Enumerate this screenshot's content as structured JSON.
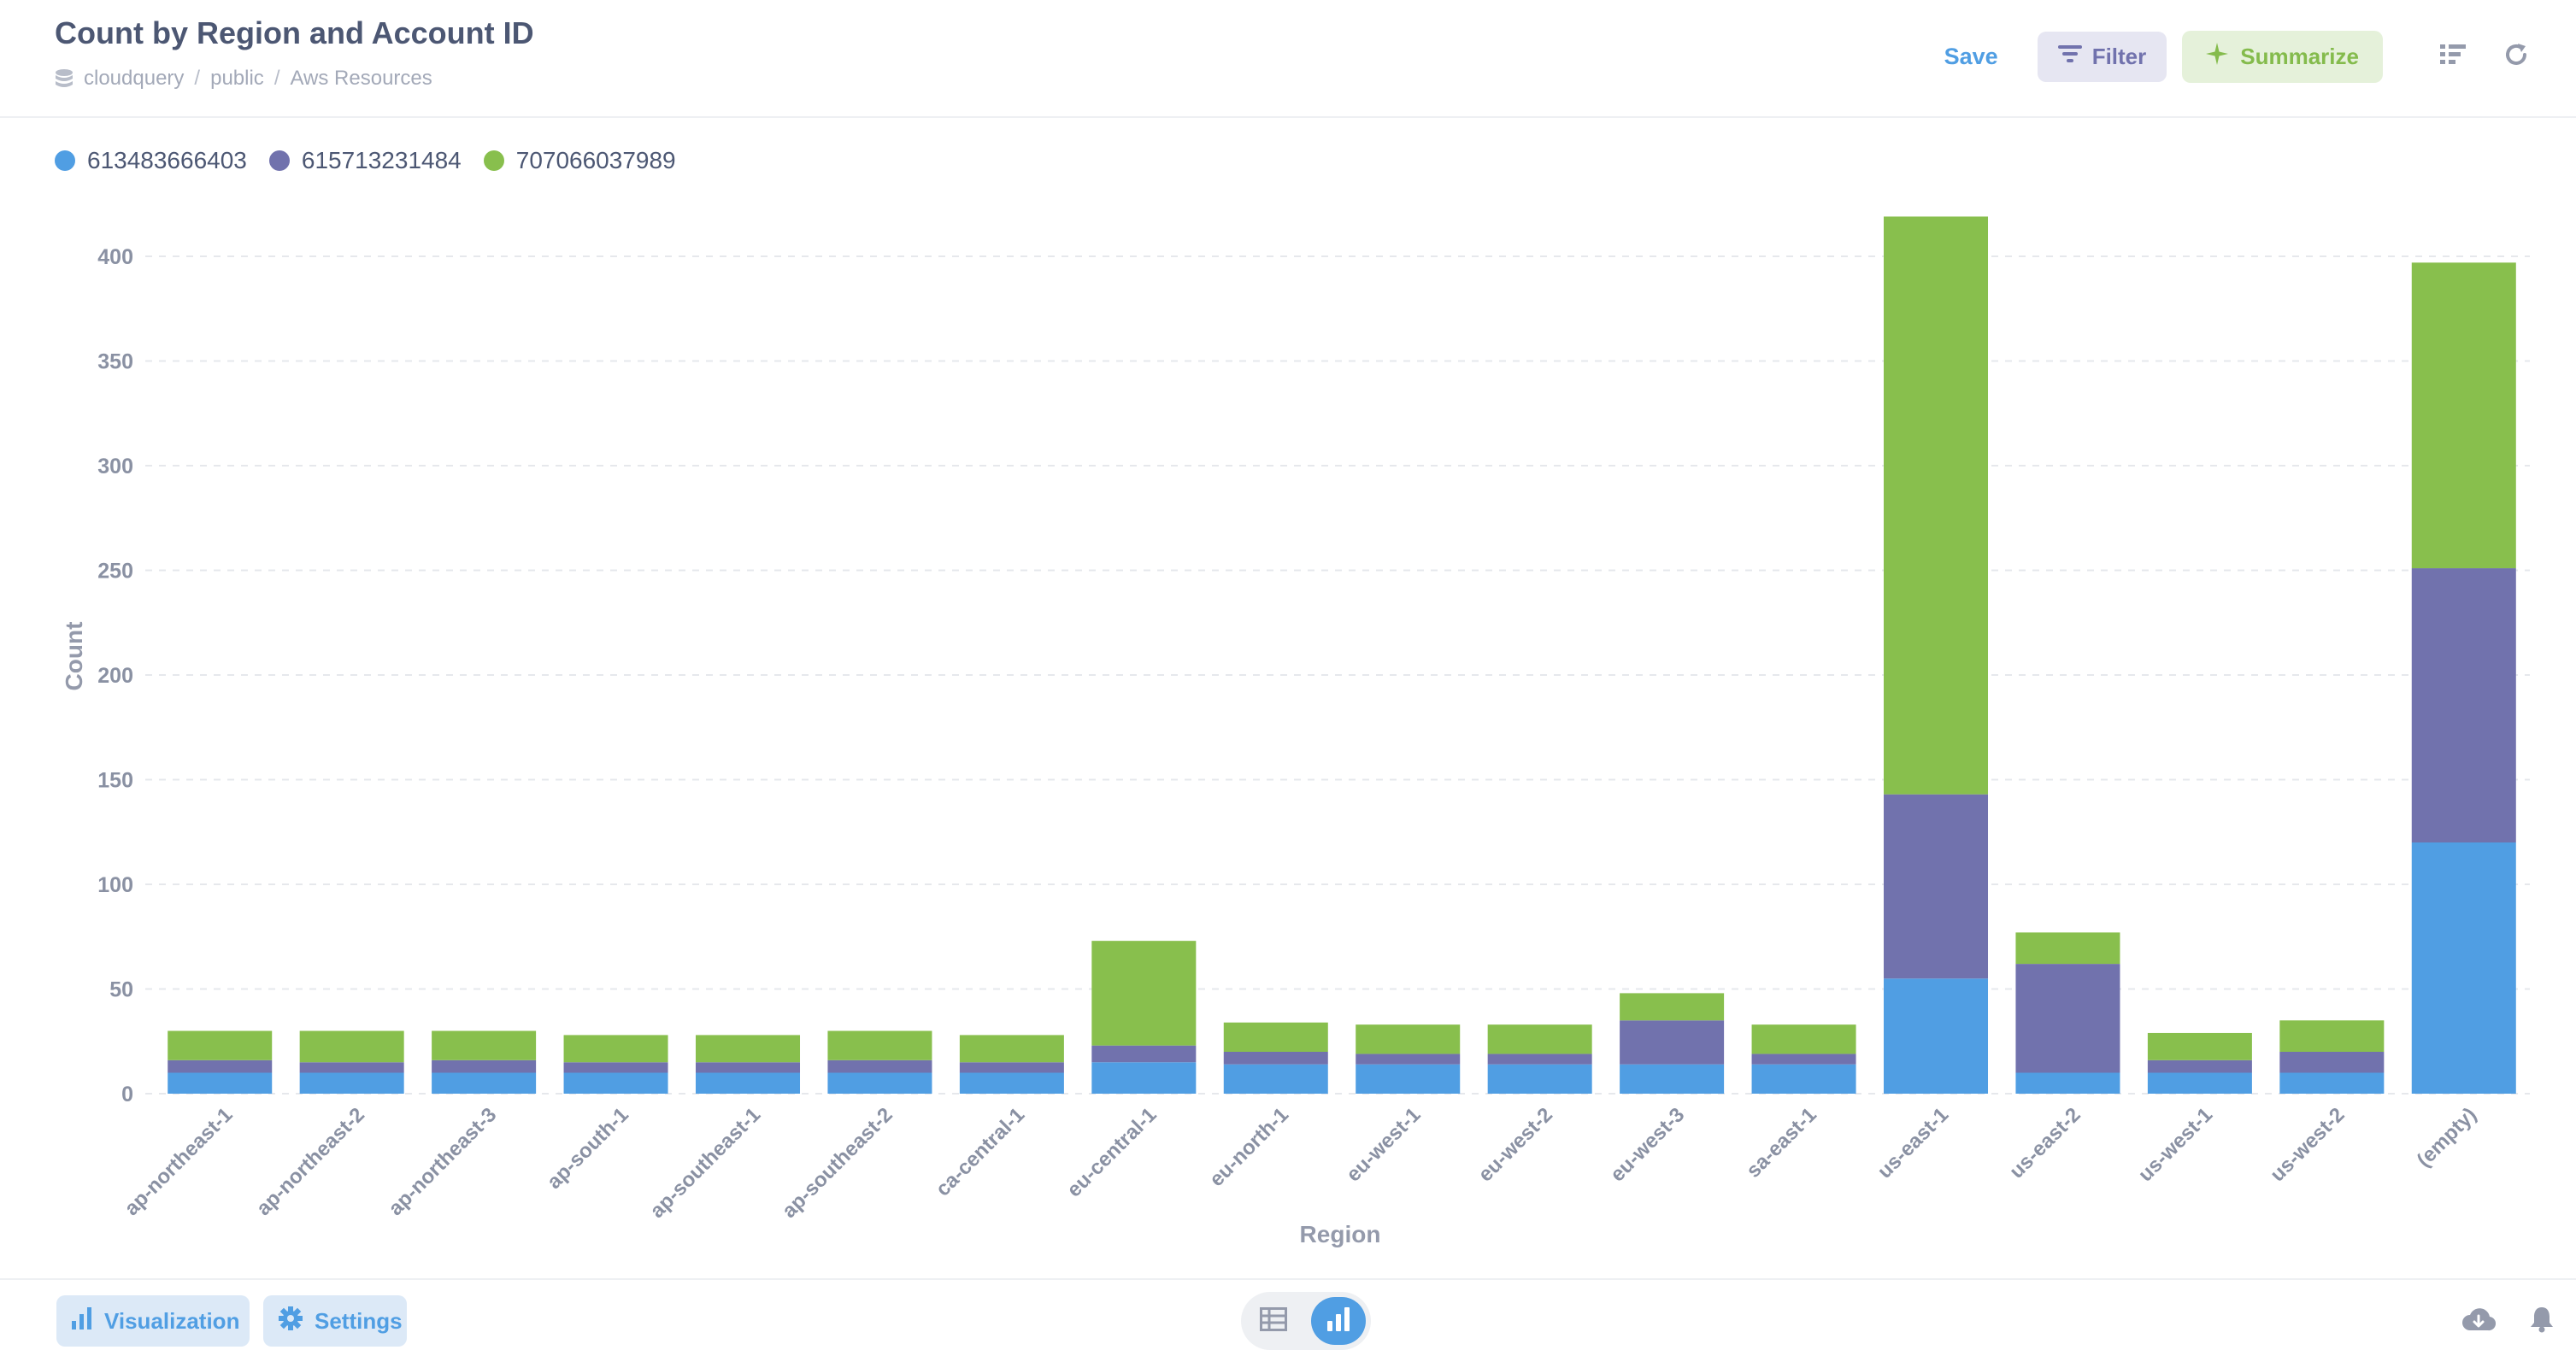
{
  "header": {
    "title": "Count by Region and Account ID",
    "breadcrumb": [
      "cloudquery",
      "public",
      "Aws Resources"
    ],
    "breadcrumb_sep": "/",
    "save_label": "Save",
    "filter_label": "Filter",
    "summarize_label": "Summarize"
  },
  "colors": {
    "series": [
      "#509ee3",
      "#7172ad",
      "#88bf4d"
    ],
    "accent": "#509ee3"
  },
  "chart_data": {
    "type": "bar",
    "stacked": true,
    "title": "Count by Region and Account ID",
    "xlabel": "Region",
    "ylabel": "Count",
    "ylim": [
      0,
      400
    ],
    "yticks": [
      0,
      50,
      100,
      150,
      200,
      250,
      300,
      350,
      400
    ],
    "grid": true,
    "legend_position": "top-left",
    "categories": [
      "ap-northeast-1",
      "ap-northeast-2",
      "ap-northeast-3",
      "ap-south-1",
      "ap-southeast-1",
      "ap-southeast-2",
      "ca-central-1",
      "eu-central-1",
      "eu-north-1",
      "eu-west-1",
      "eu-west-2",
      "eu-west-3",
      "sa-east-1",
      "us-east-1",
      "us-east-2",
      "us-west-1",
      "us-west-2",
      "(empty)"
    ],
    "series": [
      {
        "name": "613483666403",
        "values": [
          10,
          10,
          10,
          10,
          10,
          10,
          10,
          15,
          14,
          14,
          14,
          14,
          14,
          55,
          10,
          10,
          10,
          120
        ]
      },
      {
        "name": "615713231484",
        "values": [
          6,
          5,
          6,
          5,
          5,
          6,
          5,
          8,
          6,
          5,
          5,
          21,
          5,
          88,
          52,
          6,
          10,
          131
        ]
      },
      {
        "name": "707066037989",
        "values": [
          14,
          15,
          14,
          13,
          13,
          14,
          13,
          50,
          14,
          14,
          14,
          13,
          14,
          276,
          15,
          13,
          15,
          146
        ]
      }
    ]
  },
  "footer": {
    "visualization_label": "Visualization",
    "settings_label": "Settings"
  }
}
